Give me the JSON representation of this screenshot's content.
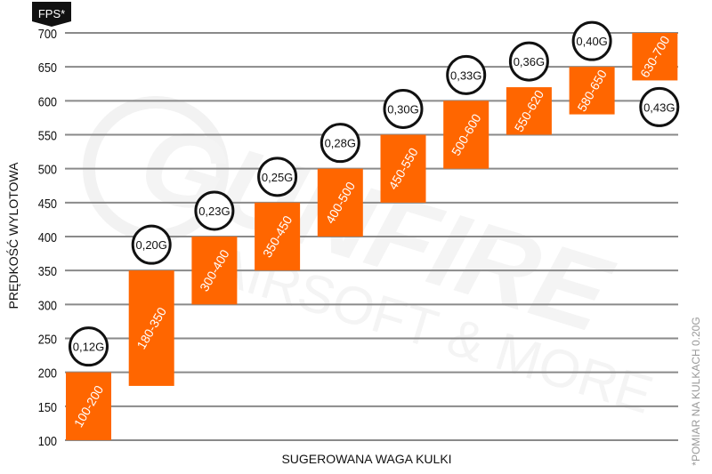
{
  "chart_data": {
    "type": "bar",
    "subtype": "floating-range",
    "unit_badge": "FPS*",
    "ylabel": "PRĘDKOŚĆ WYLOTOWA",
    "xlabel": "SUGEROWANA WAGA KULKI",
    "footnote": "*POMIAR NA KULKACH 0.20G",
    "ylim": [
      100,
      700
    ],
    "yticks": [
      100,
      150,
      200,
      250,
      300,
      350,
      400,
      450,
      500,
      550,
      600,
      650,
      700
    ],
    "grid": true,
    "bar_color": "#ff6600",
    "categories": [
      "0,12G",
      "0,20G",
      "0,23G",
      "0,25G",
      "0,28G",
      "0,30G",
      "0,33G",
      "0,36G",
      "0,40G",
      "0,43G"
    ],
    "ranges": [
      [
        100,
        200
      ],
      [
        180,
        350
      ],
      [
        300,
        400
      ],
      [
        350,
        450
      ],
      [
        400,
        500
      ],
      [
        450,
        550
      ],
      [
        500,
        600
      ],
      [
        550,
        620
      ],
      [
        580,
        650
      ],
      [
        630,
        700
      ]
    ],
    "range_labels": [
      "100-200",
      "180-350",
      "300-400",
      "350-450",
      "400-500",
      "450-550",
      "500-600",
      "550-620",
      "580-650",
      "630-700"
    ]
  },
  "watermark": {
    "brand": "GUNFIRE",
    "tagline": "AIRSOFT & MORE"
  }
}
